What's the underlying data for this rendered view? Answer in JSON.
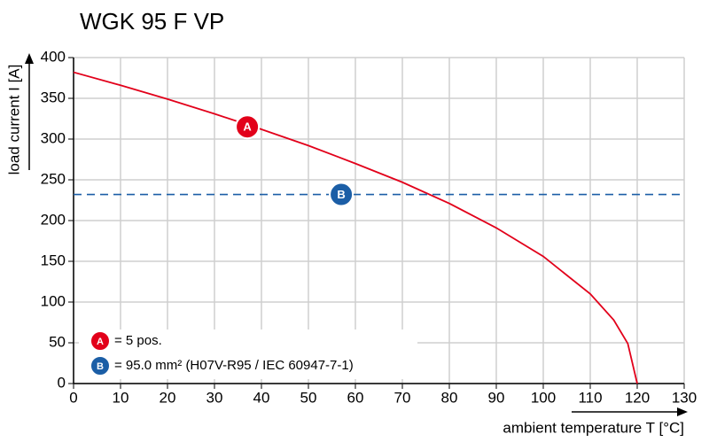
{
  "chart_data": {
    "type": "line",
    "title": "WGK 95 F VP",
    "x_label": "ambient temperature T [°C]",
    "y_label": "load current I [A]",
    "xlim": [
      0,
      130
    ],
    "ylim": [
      0,
      400
    ],
    "xticks": [
      0,
      10,
      20,
      30,
      40,
      50,
      60,
      70,
      80,
      90,
      100,
      110,
      120,
      130
    ],
    "yticks": [
      0,
      50,
      100,
      150,
      200,
      250,
      300,
      350,
      400
    ],
    "grid": true,
    "series": [
      {
        "name": "A",
        "legend_text": "= 5 pos.",
        "color": "#e2001a",
        "dashed": false,
        "x": [
          0,
          10,
          20,
          30,
          40,
          50,
          60,
          70,
          80,
          90,
          100,
          110,
          115,
          118,
          120
        ],
        "values": [
          382,
          366,
          349,
          331,
          312,
          292,
          270,
          247,
          221,
          191,
          156,
          110,
          78,
          49,
          0
        ],
        "marker_x": 37,
        "marker_y": 315
      },
      {
        "name": "B",
        "legend_text": "= 95.0 mm² (H07V-R95 / IEC 60947-7-1)",
        "color": "#1b5ea6",
        "dashed": true,
        "x": [
          0,
          130
        ],
        "values": [
          232,
          232
        ],
        "marker_x": 57,
        "marker_y": 232
      }
    ]
  }
}
